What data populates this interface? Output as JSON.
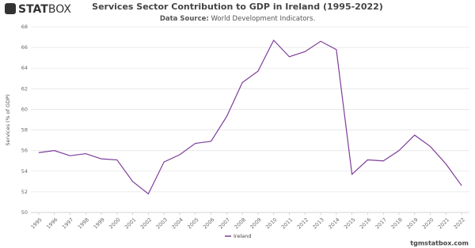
{
  "logo": {
    "bold": "STAT",
    "light": "BOX"
  },
  "footer": "tgmstatbox.com",
  "chart_data": {
    "type": "line",
    "title": "Services Sector Contribution to GDP in Ireland (1995-2022)",
    "source_label": "Data Source:",
    "source_value": "World Development Indicators.",
    "y_label": "Services (% of GDP)",
    "x": [
      1995,
      1996,
      1997,
      1998,
      1999,
      2000,
      2001,
      2002,
      2003,
      2004,
      2005,
      2006,
      2007,
      2008,
      2009,
      2010,
      2011,
      2012,
      2013,
      2014,
      2015,
      2016,
      2017,
      2018,
      2019,
      2020,
      2021,
      2022
    ],
    "series": [
      {
        "name": "Ireland",
        "color": "#7d3c98",
        "values": [
          55.8,
          56.0,
          55.5,
          55.7,
          55.2,
          55.1,
          53.0,
          51.8,
          54.9,
          55.6,
          56.7,
          56.9,
          59.3,
          62.6,
          63.7,
          66.7,
          65.1,
          65.6,
          66.6,
          65.8,
          53.7,
          55.1,
          55.0,
          56.0,
          57.5,
          56.4,
          54.7,
          52.6
        ]
      }
    ],
    "xlim": [
      1994.5,
      2022.5
    ],
    "xticks": [
      1995,
      1996,
      1997,
      1998,
      1999,
      2000,
      2001,
      2002,
      2003,
      2004,
      2005,
      2006,
      2007,
      2008,
      2009,
      2010,
      2011,
      2012,
      2013,
      2014,
      2015,
      2016,
      2017,
      2018,
      2019,
      2020,
      2021,
      2022
    ],
    "ylim": [
      50,
      68
    ],
    "yticks": [
      50,
      52,
      54,
      56,
      58,
      60,
      62,
      64,
      66,
      68
    ],
    "grid": true
  }
}
